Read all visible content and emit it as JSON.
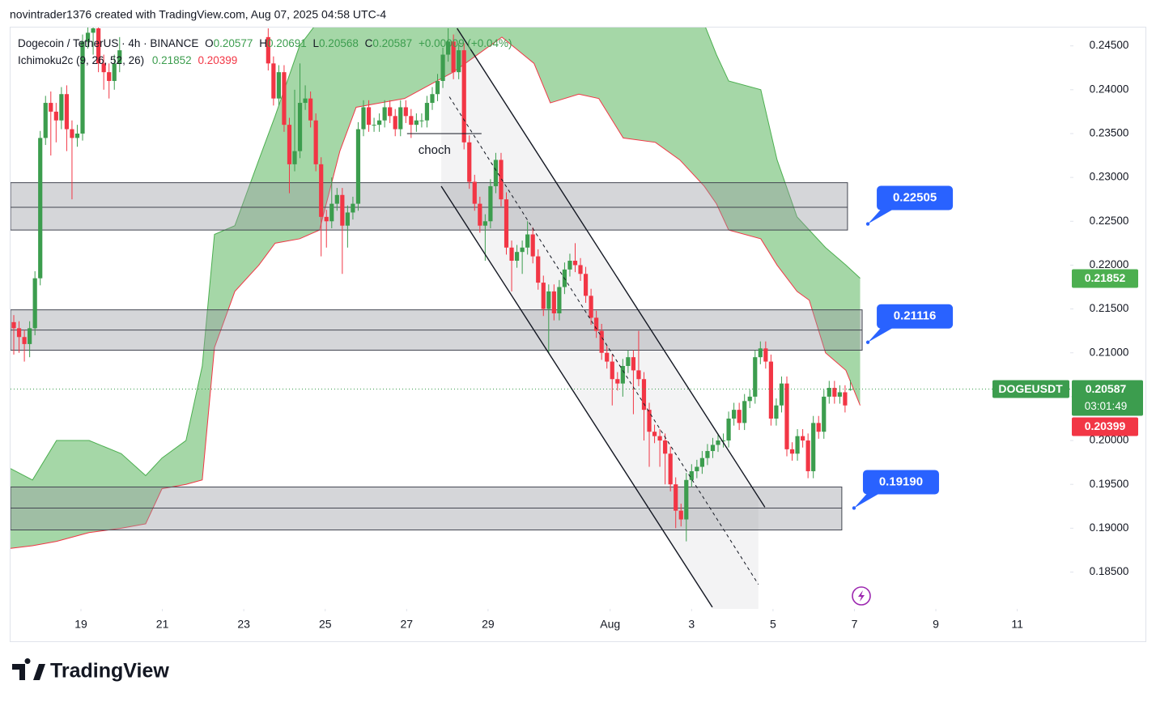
{
  "header": {
    "attribution": "novintrader1376 created with TradingView.com, Aug 07, 2025 04:58 UTC-4"
  },
  "footer": {
    "logo": "TradingView"
  },
  "chart_data": {
    "type": "candlestick",
    "symbol": "Dogecoin / TetherUS · 4h · BINANCE",
    "ohlc_prefixes": [
      "O",
      "H",
      "L",
      "C"
    ],
    "change": "+0.00009 (+0.04%)",
    "indicator": "Ichimoku2c (9, 26, 52, 26)",
    "indicator_values": [
      0.21852,
      0.20399
    ],
    "indicator_colors": [
      "#4caf50",
      "#f23645"
    ],
    "ticker": "DOGEUSDT",
    "countdown": "03:01:49",
    "up_color": "#3c9d4e",
    "down_color": "#f23645",
    "x": [
      17.35,
      17.48,
      17.61,
      17.74,
      17.87,
      18.0,
      18.13,
      18.26,
      18.39,
      18.52,
      18.65,
      18.78,
      18.91,
      19.04,
      19.17,
      19.3,
      19.43,
      19.56,
      19.69,
      19.82,
      19.95,
      23.6,
      23.73,
      23.86,
      23.99,
      24.12,
      24.25,
      24.38,
      24.51,
      24.64,
      24.77,
      24.9,
      25.03,
      25.16,
      25.29,
      25.42,
      25.55,
      25.68,
      25.81,
      25.94,
      26.07,
      26.2,
      26.33,
      26.46,
      26.59,
      26.72,
      26.85,
      26.98,
      27.11,
      27.24,
      27.37,
      27.5,
      27.63,
      27.76,
      27.89,
      28.02,
      28.15,
      28.28,
      28.41,
      28.54,
      28.67,
      28.8,
      28.93,
      29.06,
      29.19,
      29.32,
      29.45,
      29.58,
      29.71,
      29.84,
      29.97,
      30.1,
      30.23,
      30.36,
      30.49,
      30.62,
      30.75,
      30.88,
      31.01,
      31.14,
      31.27,
      31.4,
      31.53,
      31.66,
      31.79,
      31.92,
      32.05,
      32.18,
      32.31,
      32.44,
      32.57,
      32.7,
      32.83,
      32.96,
      33.09,
      33.22,
      33.35,
      33.48,
      33.61,
      33.74,
      33.87,
      34.0,
      34.13,
      34.26,
      34.39,
      34.52,
      34.65,
      34.78,
      34.91,
      35.04,
      35.17,
      35.3,
      35.43,
      35.56,
      35.69,
      35.82,
      35.95,
      36.08,
      36.21,
      36.34,
      36.47,
      36.6,
      36.73,
      36.86,
      36.99,
      37.12,
      37.25,
      37.38,
      37.51,
      37.64,
      37.77,
      37.9
    ],
    "ohlc": [
      [
        0.2135,
        0.2143,
        0.2098,
        0.2128
      ],
      [
        0.2128,
        0.2136,
        0.21,
        0.2118
      ],
      [
        0.2118,
        0.2126,
        0.209,
        0.211
      ],
      [
        0.211,
        0.2136,
        0.2095,
        0.2128
      ],
      [
        0.2128,
        0.2193,
        0.212,
        0.2185
      ],
      [
        0.2185,
        0.2353,
        0.2177,
        0.2345
      ],
      [
        0.2345,
        0.2393,
        0.2337,
        0.2385
      ],
      [
        0.2385,
        0.2398,
        0.2325,
        0.2375
      ],
      [
        0.2375,
        0.2385,
        0.234,
        0.2365
      ],
      [
        0.2365,
        0.2403,
        0.2355,
        0.2395
      ],
      [
        0.2395,
        0.2405,
        0.233,
        0.2355
      ],
      [
        0.2355,
        0.2365,
        0.2275,
        0.2345
      ],
      [
        0.2345,
        0.236,
        0.2335,
        0.235
      ],
      [
        0.235,
        0.2463,
        0.2342,
        0.2455
      ],
      [
        0.2455,
        0.248,
        0.2447,
        0.2465
      ],
      [
        0.2465,
        0.249,
        0.244,
        0.247
      ],
      [
        0.247,
        0.248,
        0.242,
        0.243
      ],
      [
        0.243,
        0.244,
        0.24,
        0.242
      ],
      [
        0.242,
        0.243,
        0.239,
        0.241
      ],
      [
        0.241,
        0.244,
        0.24,
        0.243
      ],
      [
        0.243,
        0.246,
        0.242,
        0.2445
      ],
      [
        0.246,
        0.247,
        0.2422,
        0.243
      ],
      [
        0.243,
        0.2438,
        0.2382,
        0.239
      ],
      [
        0.239,
        0.2428,
        0.2382,
        0.242
      ],
      [
        0.242,
        0.2428,
        0.2352,
        0.236
      ],
      [
        0.236,
        0.2368,
        0.2282,
        0.2315
      ],
      [
        0.2315,
        0.24,
        0.2307,
        0.233
      ],
      [
        0.233,
        0.243,
        0.2322,
        0.2385
      ],
      [
        0.2385,
        0.2405,
        0.2377,
        0.239
      ],
      [
        0.239,
        0.2398,
        0.2357,
        0.2365
      ],
      [
        0.2365,
        0.2373,
        0.2307,
        0.2315
      ],
      [
        0.2315,
        0.2323,
        0.221,
        0.2255
      ],
      [
        0.2255,
        0.2263,
        0.222,
        0.225
      ],
      [
        0.225,
        0.23,
        0.2242,
        0.227
      ],
      [
        0.227,
        0.2288,
        0.2262,
        0.228
      ],
      [
        0.228,
        0.2288,
        0.219,
        0.2245
      ],
      [
        0.2245,
        0.2268,
        0.222,
        0.226
      ],
      [
        0.226,
        0.2278,
        0.2252,
        0.227
      ],
      [
        0.227,
        0.2363,
        0.2262,
        0.2355
      ],
      [
        0.2355,
        0.2388,
        0.2347,
        0.238
      ],
      [
        0.238,
        0.2388,
        0.2352,
        0.236
      ],
      [
        0.236,
        0.2368,
        0.2352,
        0.236
      ],
      [
        0.236,
        0.2373,
        0.2352,
        0.2365
      ],
      [
        0.2365,
        0.2388,
        0.2357,
        0.238
      ],
      [
        0.238,
        0.2388,
        0.2362,
        0.237
      ],
      [
        0.237,
        0.2378,
        0.2347,
        0.2355
      ],
      [
        0.2355,
        0.2388,
        0.2347,
        0.238
      ],
      [
        0.238,
        0.2388,
        0.2362,
        0.237
      ],
      [
        0.237,
        0.2378,
        0.2345,
        0.236
      ],
      [
        0.236,
        0.2373,
        0.2352,
        0.2365
      ],
      [
        0.2365,
        0.2373,
        0.2357,
        0.2365
      ],
      [
        0.2365,
        0.2393,
        0.2357,
        0.2385
      ],
      [
        0.2385,
        0.2403,
        0.2377,
        0.2395
      ],
      [
        0.2395,
        0.2418,
        0.2387,
        0.241
      ],
      [
        0.241,
        0.2448,
        0.2402,
        0.244
      ],
      [
        0.244,
        0.247,
        0.2432,
        0.2455
      ],
      [
        0.2455,
        0.2463,
        0.2412,
        0.242
      ],
      [
        0.242,
        0.2453,
        0.2412,
        0.2445
      ],
      [
        0.2445,
        0.2453,
        0.2332,
        0.234
      ],
      [
        0.234,
        0.2348,
        0.2287,
        0.2295
      ],
      [
        0.2295,
        0.2303,
        0.2262,
        0.227
      ],
      [
        0.227,
        0.2278,
        0.2237,
        0.2245
      ],
      [
        0.2245,
        0.2258,
        0.2205,
        0.225
      ],
      [
        0.225,
        0.2298,
        0.2242,
        0.229
      ],
      [
        0.229,
        0.2328,
        0.2282,
        0.232
      ],
      [
        0.232,
        0.2328,
        0.2267,
        0.2275
      ],
      [
        0.2275,
        0.2283,
        0.2212,
        0.222
      ],
      [
        0.222,
        0.2228,
        0.217,
        0.2205
      ],
      [
        0.2205,
        0.2223,
        0.2197,
        0.2215
      ],
      [
        0.2215,
        0.2228,
        0.219,
        0.222
      ],
      [
        0.222,
        0.225,
        0.2212,
        0.2235
      ],
      [
        0.2235,
        0.2243,
        0.2202,
        0.221
      ],
      [
        0.221,
        0.2218,
        0.2172,
        0.218
      ],
      [
        0.218,
        0.2188,
        0.2142,
        0.215
      ],
      [
        0.215,
        0.2178,
        0.21,
        0.217
      ],
      [
        0.217,
        0.2178,
        0.2137,
        0.2145
      ],
      [
        0.2145,
        0.2183,
        0.2137,
        0.2175
      ],
      [
        0.2175,
        0.2203,
        0.2167,
        0.2195
      ],
      [
        0.2195,
        0.2213,
        0.2187,
        0.2205
      ],
      [
        0.2205,
        0.2225,
        0.2192,
        0.22
      ],
      [
        0.22,
        0.2208,
        0.2182,
        0.219
      ],
      [
        0.219,
        0.2198,
        0.2157,
        0.2165
      ],
      [
        0.2165,
        0.2173,
        0.2132,
        0.214
      ],
      [
        0.214,
        0.2148,
        0.2117,
        0.2125
      ],
      [
        0.2125,
        0.2133,
        0.2092,
        0.21
      ],
      [
        0.21,
        0.2108,
        0.2082,
        0.209
      ],
      [
        0.209,
        0.2098,
        0.204,
        0.207
      ],
      [
        0.207,
        0.2078,
        0.2057,
        0.2065
      ],
      [
        0.2065,
        0.2093,
        0.205,
        0.2085
      ],
      [
        0.2085,
        0.2103,
        0.2077,
        0.2095
      ],
      [
        0.2095,
        0.2103,
        0.203,
        0.208
      ],
      [
        0.208,
        0.2125,
        0.2062,
        0.207
      ],
      [
        0.207,
        0.2078,
        0.2,
        0.2035
      ],
      [
        0.2035,
        0.2043,
        0.197,
        0.201
      ],
      [
        0.201,
        0.2018,
        0.1997,
        0.2005
      ],
      [
        0.2005,
        0.2013,
        0.197,
        0.2
      ],
      [
        0.2,
        0.2008,
        0.195,
        0.1985
      ],
      [
        0.1985,
        0.1993,
        0.1942,
        0.195
      ],
      [
        0.195,
        0.1958,
        0.19,
        0.192
      ],
      [
        0.192,
        0.1928,
        0.1902,
        0.191
      ],
      [
        0.191,
        0.1963,
        0.1885,
        0.1955
      ],
      [
        0.1955,
        0.1973,
        0.1947,
        0.1965
      ],
      [
        0.1965,
        0.1978,
        0.1957,
        0.197
      ],
      [
        0.197,
        0.1988,
        0.1962,
        0.198
      ],
      [
        0.198,
        0.1996,
        0.1972,
        0.1988
      ],
      [
        0.1988,
        0.2003,
        0.198,
        0.1995
      ],
      [
        0.1995,
        0.2008,
        0.1987,
        0.2
      ],
      [
        0.2,
        0.2008,
        0.1992,
        0.2
      ],
      [
        0.2,
        0.2033,
        0.1992,
        0.2025
      ],
      [
        0.2025,
        0.2043,
        0.2017,
        0.2035
      ],
      [
        0.2035,
        0.2043,
        0.2012,
        0.202
      ],
      [
        0.202,
        0.2053,
        0.2012,
        0.2045
      ],
      [
        0.2045,
        0.2058,
        0.2037,
        0.205
      ],
      [
        0.205,
        0.2103,
        0.2042,
        0.2095
      ],
      [
        0.2095,
        0.2113,
        0.2087,
        0.2105
      ],
      [
        0.2105,
        0.2113,
        0.2082,
        0.209
      ],
      [
        0.209,
        0.2098,
        0.2017,
        0.2025
      ],
      [
        0.2025,
        0.2048,
        0.2017,
        0.204
      ],
      [
        0.204,
        0.2073,
        0.2032,
        0.2065
      ],
      [
        0.2065,
        0.2073,
        0.1982,
        0.199
      ],
      [
        0.199,
        0.1998,
        0.1977,
        0.1985
      ],
      [
        0.1985,
        0.2013,
        0.1977,
        0.2005
      ],
      [
        0.2005,
        0.2013,
        0.1992,
        0.2
      ],
      [
        0.2,
        0.2008,
        0.1957,
        0.1965
      ],
      [
        0.1965,
        0.2028,
        0.1957,
        0.202
      ],
      [
        0.202,
        0.2028,
        0.2002,
        0.201
      ],
      [
        0.201,
        0.2058,
        0.2002,
        0.205
      ],
      [
        0.205,
        0.2068,
        0.2042,
        0.206
      ],
      [
        0.206,
        0.2068,
        0.2042,
        0.205
      ],
      [
        0.205,
        0.2063,
        0.2042,
        0.2055
      ],
      [
        0.2055,
        0.2063,
        0.2032,
        0.204
      ],
      [
        0.20577,
        0.20691,
        0.20568,
        0.20587
      ]
    ],
    "cloud": {
      "color": "#4caf50",
      "upper_color": "#4caf50",
      "lower_color": "#f23645",
      "x": [
        17.27,
        17.81,
        18.4,
        19.2,
        19.99,
        20.59,
        20.99,
        21.58,
        21.98,
        22.28,
        22.78,
        23.37,
        23.77,
        24.37,
        24.86,
        25.36,
        25.76,
        26.95,
        28.14,
        29.34,
        30.13,
        30.53,
        31.23,
        31.72,
        32.32,
        33.11,
        33.71,
        34.31,
        34.61,
        34.91,
        35.7,
        36.1,
        36.59,
        36.89,
        37.29,
        37.79,
        38.14
      ],
      "upper": [
        0.1968,
        0.1955,
        0.2,
        0.2,
        0.1985,
        0.196,
        0.198,
        0.2,
        0.2085,
        0.2235,
        0.2245,
        0.232,
        0.237,
        0.245,
        0.248,
        0.249,
        0.25,
        0.252,
        0.253,
        0.255,
        0.255,
        0.254,
        0.252,
        0.251,
        0.25,
        0.249,
        0.248,
        0.2475,
        0.244,
        0.241,
        0.24,
        0.232,
        0.2255,
        0.224,
        0.222,
        0.22,
        0.2185
      ],
      "lower": [
        0.1877,
        0.188,
        0.1885,
        0.1895,
        0.19,
        0.1905,
        0.1945,
        0.195,
        0.1955,
        0.2106,
        0.217,
        0.22,
        0.2225,
        0.223,
        0.224,
        0.233,
        0.238,
        0.239,
        0.242,
        0.246,
        0.243,
        0.2385,
        0.2395,
        0.239,
        0.2345,
        0.234,
        0.232,
        0.229,
        0.227,
        0.224,
        0.223,
        0.22,
        0.217,
        0.216,
        0.21,
        0.208,
        0.204
      ]
    },
    "zones": [
      {
        "from": 17.27,
        "to": 37.83,
        "low": 0.224,
        "high": 0.2294,
        "mid": 0.2266
      },
      {
        "from": 17.27,
        "to": 38.19,
        "low": 0.2103,
        "high": 0.2149,
        "mid": 0.2126
      },
      {
        "from": 17.27,
        "to": 37.69,
        "low": 0.1898,
        "high": 0.1947,
        "mid": 0.1923
      }
    ],
    "channel": {
      "fill": [
        [
          27.85,
          0.229
        ],
        [
          27.85,
          0.243
        ],
        [
          28.24,
          0.247
        ],
        [
          35.64,
          0.1936
        ],
        [
          35.64,
          0.1808
        ],
        [
          34.51,
          0.1808
        ]
      ],
      "lines": [
        {
          "style": "solid",
          "points": [
            [
              28.24,
              0.247
            ],
            [
              35.8,
              0.1924
            ]
          ]
        },
        {
          "style": "solid",
          "points": [
            [
              27.85,
              0.229
            ],
            [
              34.51,
              0.181
            ]
          ]
        },
        {
          "style": "dashed",
          "points": [
            [
              28.05,
              0.2392
            ],
            [
              35.64,
              0.1836
            ]
          ]
        }
      ]
    },
    "structure_break": {
      "text": "choch",
      "from": 27.01,
      "to": 28.84,
      "y": 0.235
    },
    "callouts": [
      {
        "label": "0.22505",
        "x": 38.33,
        "y": 0.2247
      },
      {
        "label": "0.21116",
        "x": 38.33,
        "y": 0.2112
      },
      {
        "label": "0.19190",
        "x": 37.99,
        "y": 0.1923
      }
    ],
    "xlim": [
      17.27,
      43.3
    ],
    "ylim": [
      0.1808,
      0.247
    ],
    "xticks": [
      19,
      21,
      23,
      25,
      27,
      29,
      {
        "value": 32,
        "label": "Aug"
      },
      {
        "value": 34,
        "label": "3"
      },
      {
        "value": 36,
        "label": "5"
      },
      {
        "value": 38,
        "label": "7"
      },
      {
        "value": 40,
        "label": "9"
      },
      {
        "value": 42,
        "label": "11"
      }
    ],
    "yticks": [
      {
        "value": 0.185,
        "label": "0.18500"
      },
      {
        "value": 0.19,
        "label": "0.19000"
      },
      {
        "value": 0.195,
        "label": "0.19500"
      },
      {
        "value": 0.2,
        "label": "0.20000"
      },
      {
        "value": 0.205,
        "label": "0.20500"
      },
      {
        "value": 0.21,
        "label": "0.21000"
      },
      {
        "value": 0.215,
        "label": "0.21500"
      },
      {
        "value": 0.22,
        "label": "0.22000"
      },
      {
        "value": 0.225,
        "label": "0.22500"
      },
      {
        "value": 0.23,
        "label": "0.23000"
      },
      {
        "value": 0.235,
        "label": "0.23500"
      },
      {
        "value": 0.24,
        "label": "0.24000"
      },
      {
        "value": 0.245,
        "label": "0.24500"
      }
    ]
  }
}
